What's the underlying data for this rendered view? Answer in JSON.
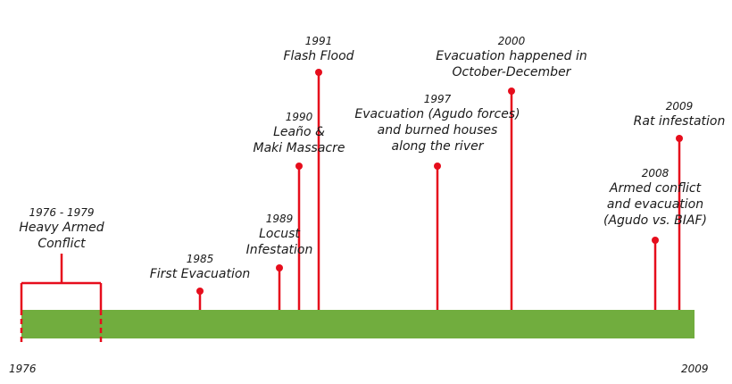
{
  "timeline": {
    "start_label": "1976",
    "end_label": "2009",
    "bar_color": "#71ad3e",
    "marker_color": "#e60d1c",
    "range_event": {
      "year": "1976 - 1979",
      "lines": [
        "Heavy Armed",
        "Conflict"
      ]
    },
    "events": [
      {
        "year": "1985",
        "lines": [
          "First Evacuation"
        ]
      },
      {
        "year": "1989",
        "lines": [
          "Locust",
          "Infestation"
        ]
      },
      {
        "year": "1990",
        "lines": [
          "Leaño &",
          "Maki Massacre"
        ]
      },
      {
        "year": "1991",
        "lines": [
          "Flash Flood"
        ]
      },
      {
        "year": "1997",
        "lines": [
          "Evacuation (Agudo forces)",
          "and burned houses",
          "along the river"
        ]
      },
      {
        "year": "2000",
        "lines": [
          "Evacuation happened in",
          "October-December"
        ]
      },
      {
        "year": "2008",
        "lines": [
          "Armed conflict",
          "and evacuation",
          "(Agudo vs. BIAF)"
        ]
      },
      {
        "year": "2009",
        "lines": [
          "Rat infestation"
        ]
      }
    ]
  }
}
